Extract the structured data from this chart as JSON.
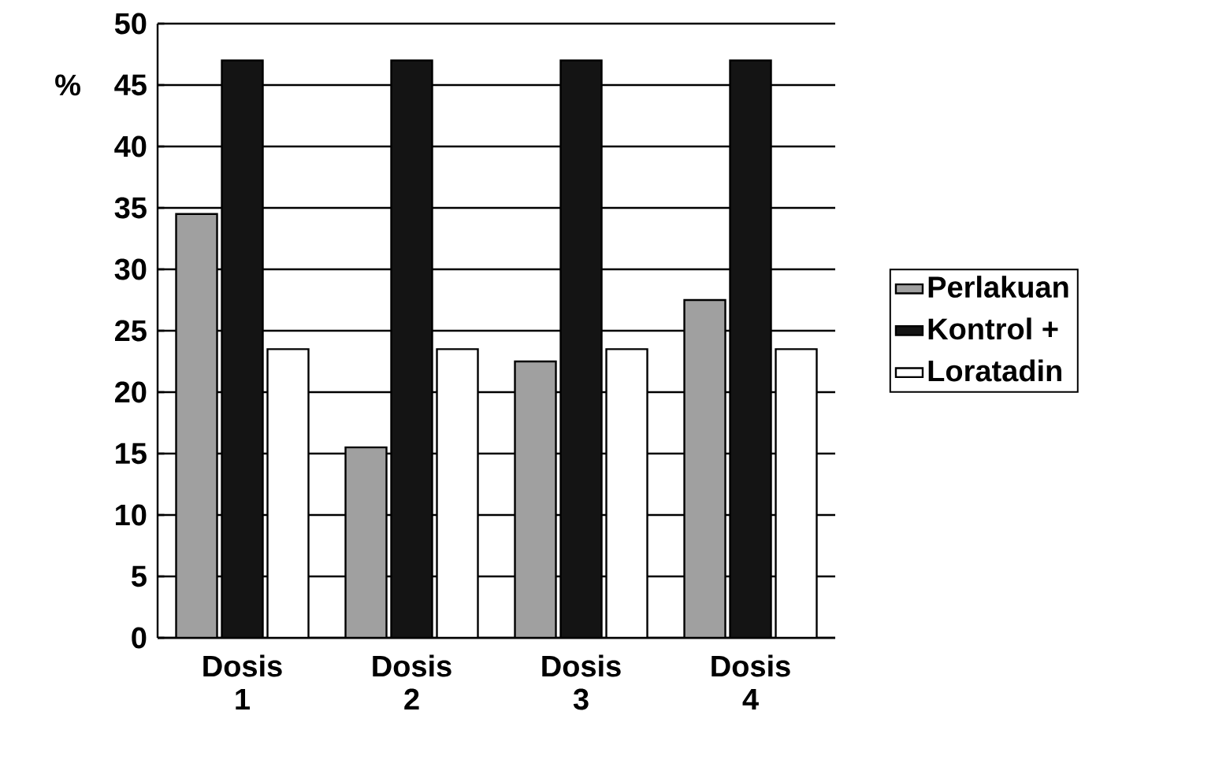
{
  "chart_data": {
    "type": "bar",
    "ylabel": "%",
    "categories": [
      "Dosis 1",
      "Dosis 2",
      "Dosis 3",
      "Dosis 4"
    ],
    "series": [
      {
        "name": "Perlakuan",
        "color": "#a0a0a0",
        "values": [
          34.5,
          15.5,
          22.5,
          27.5
        ]
      },
      {
        "name": "Kontrol +",
        "color": "#141414",
        "values": [
          47,
          47,
          47,
          47
        ]
      },
      {
        "name": "Loratadin",
        "color": "#ffffff",
        "values": [
          23.5,
          23.5,
          23.5,
          23.5
        ]
      }
    ],
    "ylim": [
      0,
      50
    ],
    "yticks": [
      0,
      5,
      10,
      15,
      20,
      25,
      30,
      35,
      40,
      45,
      50
    ],
    "grid": "y",
    "legend": "right"
  }
}
